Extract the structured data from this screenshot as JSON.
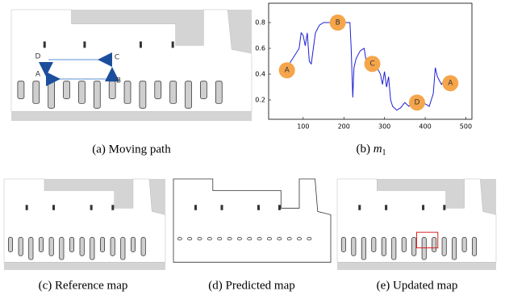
{
  "panel_a": {
    "caption": "(a) Moving path",
    "labels": [
      "A",
      "B",
      "C",
      "D"
    ]
  },
  "panel_b": {
    "caption_prefix": "(b)",
    "caption_var": "m",
    "caption_sub": "1"
  },
  "panel_c": {
    "caption": "(c) Reference map"
  },
  "panel_d": {
    "caption": "(d) Predicted map"
  },
  "panel_e": {
    "caption": "(e) Updated map"
  },
  "chart_data": {
    "type": "line",
    "x": [
      60,
      70,
      80,
      90,
      95,
      100,
      105,
      110,
      115,
      120,
      125,
      130,
      135,
      140,
      150,
      160,
      170,
      180,
      190,
      200,
      210,
      215,
      218,
      222,
      225,
      230,
      240,
      250,
      255,
      260,
      270,
      280,
      290,
      295,
      300,
      305,
      310,
      315,
      320,
      330,
      340,
      350,
      360,
      370,
      380,
      390,
      400,
      410,
      415,
      420,
      425,
      430,
      435,
      440,
      450
    ],
    "values": [
      0.45,
      0.5,
      0.55,
      0.6,
      0.72,
      0.7,
      0.62,
      0.72,
      0.5,
      0.48,
      0.6,
      0.72,
      0.75,
      0.78,
      0.8,
      0.8,
      0.8,
      0.8,
      0.8,
      0.8,
      0.8,
      0.8,
      0.6,
      0.22,
      0.45,
      0.52,
      0.58,
      0.6,
      0.5,
      0.52,
      0.48,
      0.46,
      0.4,
      0.32,
      0.42,
      0.3,
      0.38,
      0.2,
      0.15,
      0.12,
      0.14,
      0.18,
      0.15,
      0.2,
      0.18,
      0.16,
      0.17,
      0.15,
      0.2,
      0.25,
      0.45,
      0.38,
      0.35,
      0.32,
      0.37
    ],
    "color": "#1f1fd6",
    "xlim": [
      15,
      515
    ],
    "ylim": [
      0.05,
      0.95
    ],
    "xticks": [
      100,
      200,
      300,
      400,
      500
    ],
    "yticks": [
      0.2,
      0.4,
      0.6,
      0.8
    ],
    "annotations": [
      {
        "label": "A",
        "x": 60,
        "y": 0.43
      },
      {
        "label": "B",
        "x": 185,
        "y": 0.8
      },
      {
        "label": "C",
        "x": 270,
        "y": 0.48
      },
      {
        "label": "D",
        "x": 380,
        "y": 0.18
      },
      {
        "label": "A",
        "x": 462,
        "y": 0.33
      }
    ],
    "annotation_color": "#f5a54a"
  }
}
